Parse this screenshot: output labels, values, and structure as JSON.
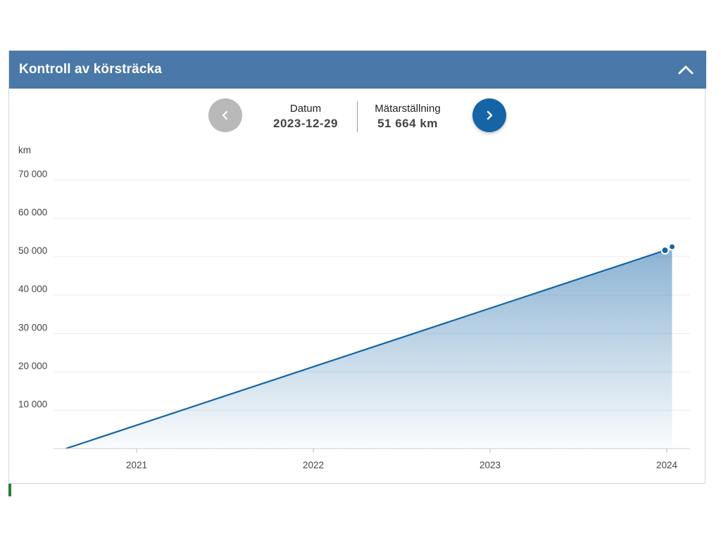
{
  "header": {
    "title": "Kontroll av körsträcka",
    "collapse_icon": "chevron-up-icon"
  },
  "navigation": {
    "prev_icon": "chevron-left-icon",
    "next_icon": "chevron-right-icon",
    "date_label": "Datum",
    "date_value": "2023-12-29",
    "odometer_label": "Mätarställning",
    "odometer_value": "51 664 km"
  },
  "colors": {
    "header": "#4a78a8",
    "line": "#1565a6",
    "prev_button": "#b9b9b9",
    "next_button": "#1565a6"
  },
  "chart_data": {
    "type": "area",
    "title": "",
    "xlabel": "",
    "ylabel": "km",
    "y_ticks": [
      "70 000",
      "60 000",
      "50 000",
      "40 000",
      "30 000",
      "20 000",
      "10 000"
    ],
    "y_tick_values": [
      70000,
      60000,
      50000,
      40000,
      30000,
      20000,
      10000
    ],
    "x_ticks": [
      "2021",
      "2022",
      "2023",
      "2024"
    ],
    "x_tick_values": [
      2021,
      2022,
      2023,
      2024
    ],
    "ylim": [
      0,
      70000
    ],
    "xlim": [
      2020.5,
      2024.15
    ],
    "grid": true,
    "series": [
      {
        "x": [
          2020.6,
          2023.99,
          2024.03
        ],
        "y": [
          0,
          51664,
          52600
        ]
      }
    ],
    "selected_point": {
      "x": 2023.99,
      "y": 51664
    }
  }
}
